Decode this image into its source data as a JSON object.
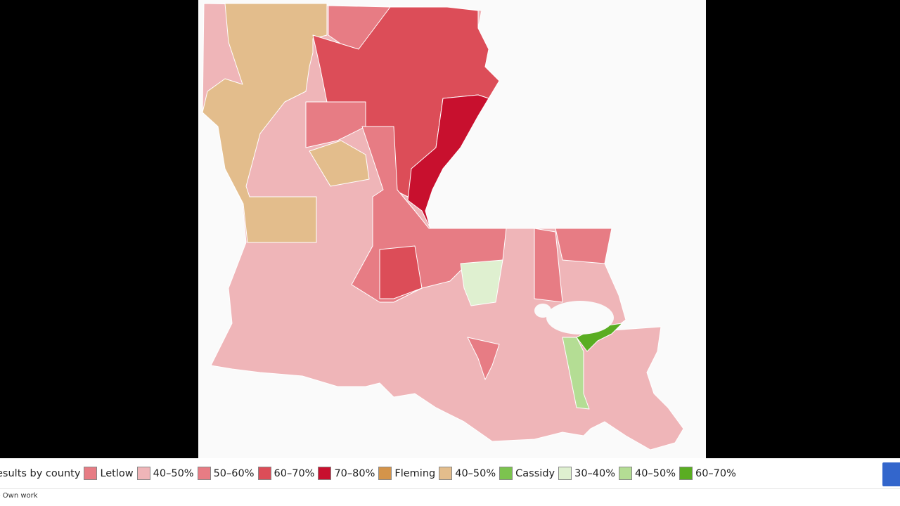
{
  "legend": {
    "title": "esults by county",
    "items": [
      {
        "label": "Letlow",
        "color": "#e77c84"
      },
      {
        "label": "40–50%",
        "color": "#efb5b8"
      },
      {
        "label": "50–60%",
        "color": "#e77c84"
      },
      {
        "label": "60–70%",
        "color": "#dc4d58"
      },
      {
        "label": "70–80%",
        "color": "#c8102e"
      },
      {
        "label": "Fleming",
        "color": "#d4944a"
      },
      {
        "label": "40–50%",
        "color": "#e3bd8c"
      },
      {
        "label": "Cassidy",
        "color": "#7cc34f"
      },
      {
        "label": "30–40%",
        "color": "#dff0d0"
      },
      {
        "label": "40–50%",
        "color": "#b4dd94"
      },
      {
        "label": "60–70%",
        "color": "#5aad22"
      }
    ]
  },
  "credit": "- Own work"
}
